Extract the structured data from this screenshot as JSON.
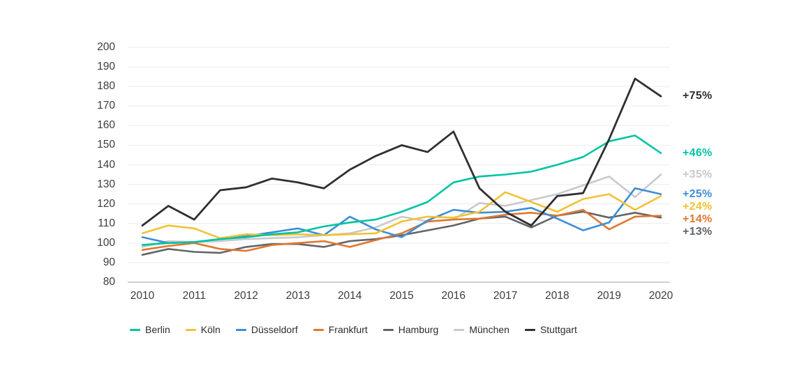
{
  "chart_data": {
    "type": "line",
    "title": "",
    "xlabel": "",
    "ylabel": "",
    "x_start": 2010,
    "x_step": 0.5,
    "x_tick_labels": [
      "2010",
      "2011",
      "2012",
      "2013",
      "2014",
      "2015",
      "2016",
      "2017",
      "2018",
      "2019",
      "2020"
    ],
    "y_tick_labels": [
      "200",
      "190",
      "180",
      "170",
      "160",
      "150",
      "140",
      "130",
      "120",
      "110",
      "100",
      "90",
      "80"
    ],
    "ylim": [
      80,
      200
    ],
    "grid": true,
    "legend_position": "bottom",
    "series": [
      {
        "name": "Berlin",
        "color": "#00c4a2",
        "end_label": "+46%",
        "end_value": 146,
        "values": [
          99,
          100,
          100.5,
          102,
          103,
          104.5,
          105.5,
          108.5,
          110.5,
          112,
          116,
          121,
          131,
          134,
          135,
          136.5,
          140,
          144,
          152,
          155,
          146
        ]
      },
      {
        "name": "Köln",
        "color": "#f1c233",
        "end_label": "+24%",
        "end_value": 124,
        "values": [
          105,
          109,
          107.5,
          102.5,
          104.5,
          104,
          104.5,
          104,
          104.5,
          105,
          111,
          113.5,
          113,
          116,
          126,
          121,
          116,
          122.5,
          125,
          117,
          124
        ]
      },
      {
        "name": "Düsseldorf",
        "color": "#3e8ed5",
        "end_label": "+25%",
        "end_value": 125,
        "values": [
          103,
          100,
          100.5,
          102,
          103.5,
          105.5,
          107.5,
          104,
          113.5,
          107,
          103,
          111.5,
          117,
          115.5,
          116,
          118,
          112.5,
          106.5,
          110.5,
          128,
          125
        ]
      },
      {
        "name": "Frankfurt",
        "color": "#e1772f",
        "end_label": "+14%",
        "end_value": 114,
        "values": [
          96.5,
          98.5,
          100,
          97,
          96,
          99,
          100,
          101,
          98,
          101.5,
          105,
          111,
          112,
          112.5,
          114.5,
          115.5,
          114,
          117,
          107,
          113.5,
          114
        ]
      },
      {
        "name": "Hamburg",
        "color": "#616569",
        "end_label": "+13%",
        "end_value": 113,
        "values": [
          94,
          97,
          95.5,
          95,
          98,
          99.5,
          99.5,
          98,
          101,
          102,
          104,
          106.5,
          109,
          112.5,
          113.5,
          108,
          114,
          116,
          113,
          115.5,
          113
        ]
      },
      {
        "name": "München",
        "color": "#c9c9cb",
        "end_label": "+35%",
        "end_value": 135,
        "values": [
          98,
          101,
          100.5,
          101,
          102,
          102.5,
          103,
          104,
          105,
          108,
          113.5,
          111,
          112,
          120.5,
          119,
          122,
          125,
          129.5,
          134,
          123.5,
          135
        ]
      },
      {
        "name": "Stuttgart",
        "color": "#2f2f33",
        "end_label": "+75%",
        "end_value": 175,
        "values": [
          109,
          119,
          112,
          127,
          128.5,
          133,
          131,
          128,
          137.5,
          144.5,
          150,
          146.5,
          157,
          128,
          116,
          109,
          124,
          125.5,
          153,
          184,
          175
        ]
      }
    ],
    "end_labels_order": [
      "+75%",
      "+46%",
      "+35%",
      "+25%",
      "+24%",
      "+14%",
      "+13%"
    ]
  },
  "colors": {
    "gridline": "#ececec",
    "axis_line": "#b3b3b3",
    "tick_text": "#3c3c3c"
  }
}
